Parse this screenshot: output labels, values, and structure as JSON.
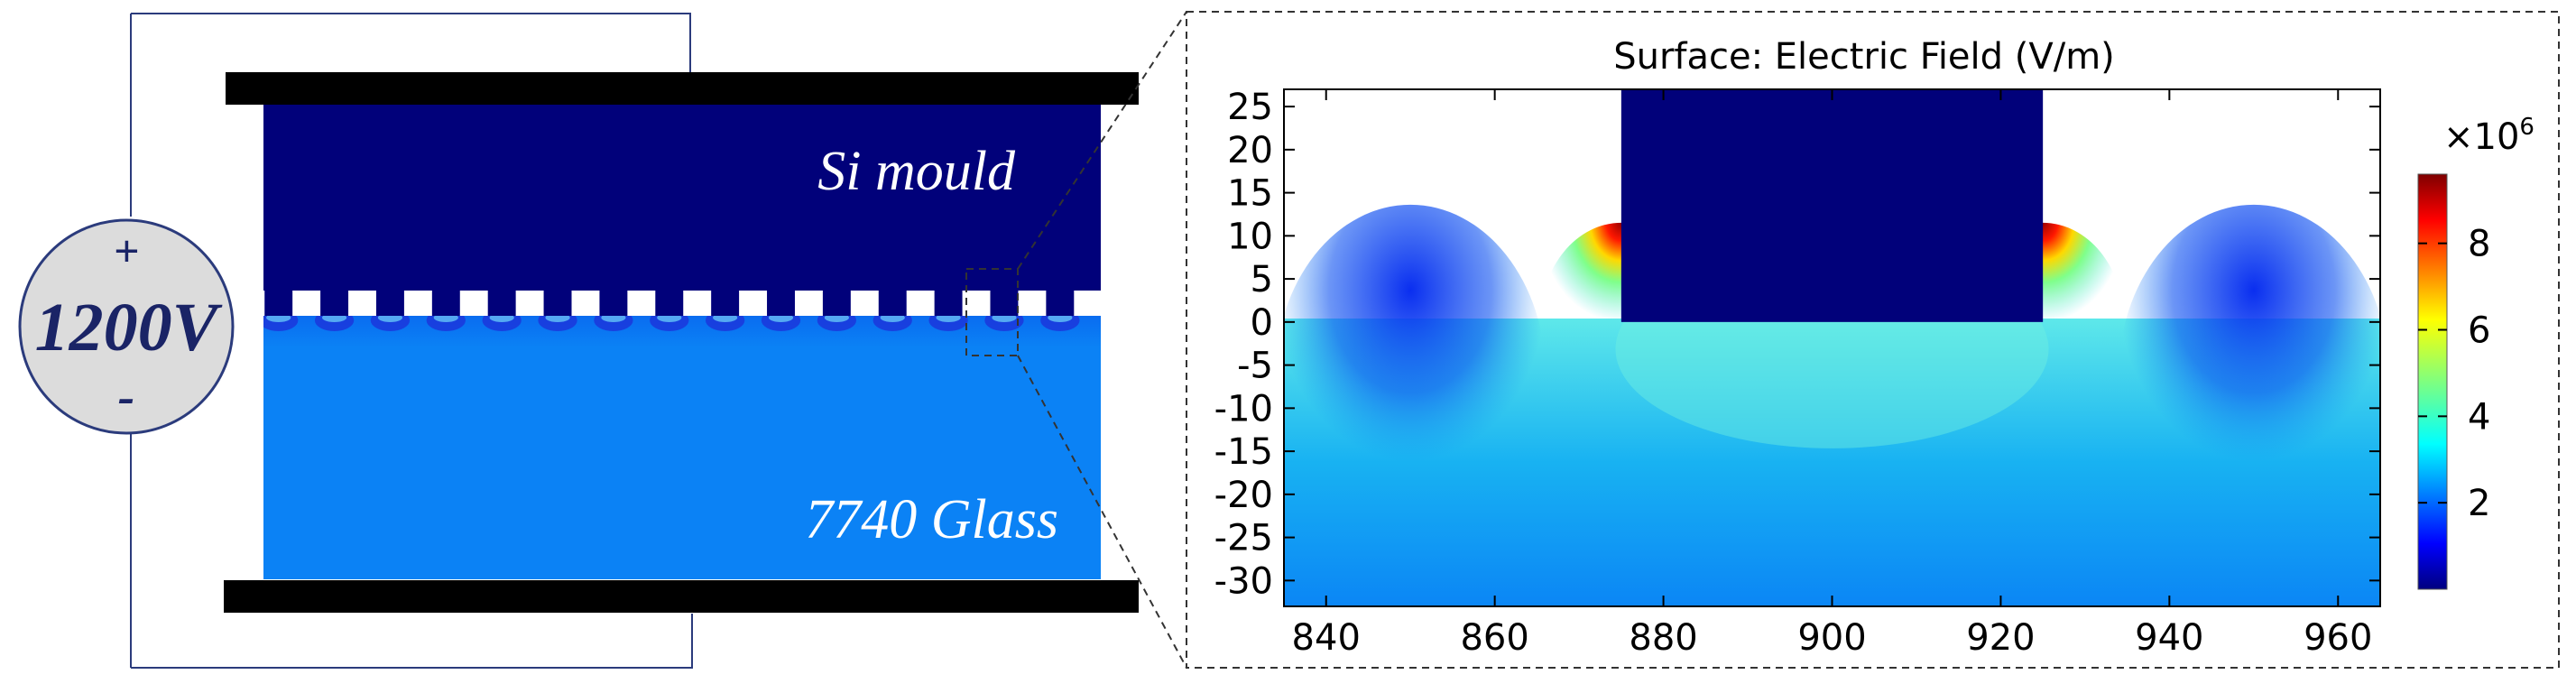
{
  "schematic": {
    "mould_label": "Si mould",
    "glass_label": "7740 Glass",
    "voltage_label": "1200V",
    "plus_sign": "+",
    "minus_sign": "-",
    "electrode_color": "#000000",
    "mould_color": "#01017a",
    "glass_color": "#0b82f5",
    "wire_color": "#2b3b7c",
    "feature_count": 15
  },
  "plot": {
    "title": "Surface: Electric Field (V/m)",
    "x_ticks": [
      "840",
      "860",
      "880",
      "900",
      "920",
      "940",
      "960"
    ],
    "y_ticks": [
      "25",
      "20",
      "15",
      "10",
      "5",
      "0",
      "-5",
      "-10",
      "-15",
      "-20",
      "-25",
      "-30"
    ],
    "colorbar_multiplier": "×10",
    "colorbar_exponent": "6",
    "colorbar_ticks": [
      "8",
      "6",
      "4",
      "2"
    ],
    "colormap": "jet"
  },
  "chart_data": {
    "type": "heatmap",
    "title": "Surface: Electric Field (V/m)",
    "xlabel": "",
    "ylabel": "",
    "xlim": [
      835,
      965
    ],
    "ylim": [
      -33,
      27
    ],
    "x_ticks": [
      840,
      860,
      880,
      900,
      920,
      940,
      960
    ],
    "y_ticks": [
      25,
      20,
      15,
      10,
      5,
      0,
      -5,
      -10,
      -15,
      -20,
      -25,
      -30
    ],
    "colorbar": {
      "range": [
        0,
        9.6
      ],
      "ticks": [
        2,
        4,
        6,
        8
      ],
      "scale_multiplier": 1000000,
      "colormap": "jet"
    },
    "mould_tooth": {
      "x": [
        875,
        925
      ],
      "y": [
        0,
        26
      ]
    },
    "field_hotspots": [
      {
        "x": 875,
        "y": 0,
        "value": 9.5
      },
      {
        "x": 925,
        "y": 0,
        "value": 9.5
      }
    ],
    "field_between_edges": 4.0,
    "field_far_field": 1.6
  }
}
